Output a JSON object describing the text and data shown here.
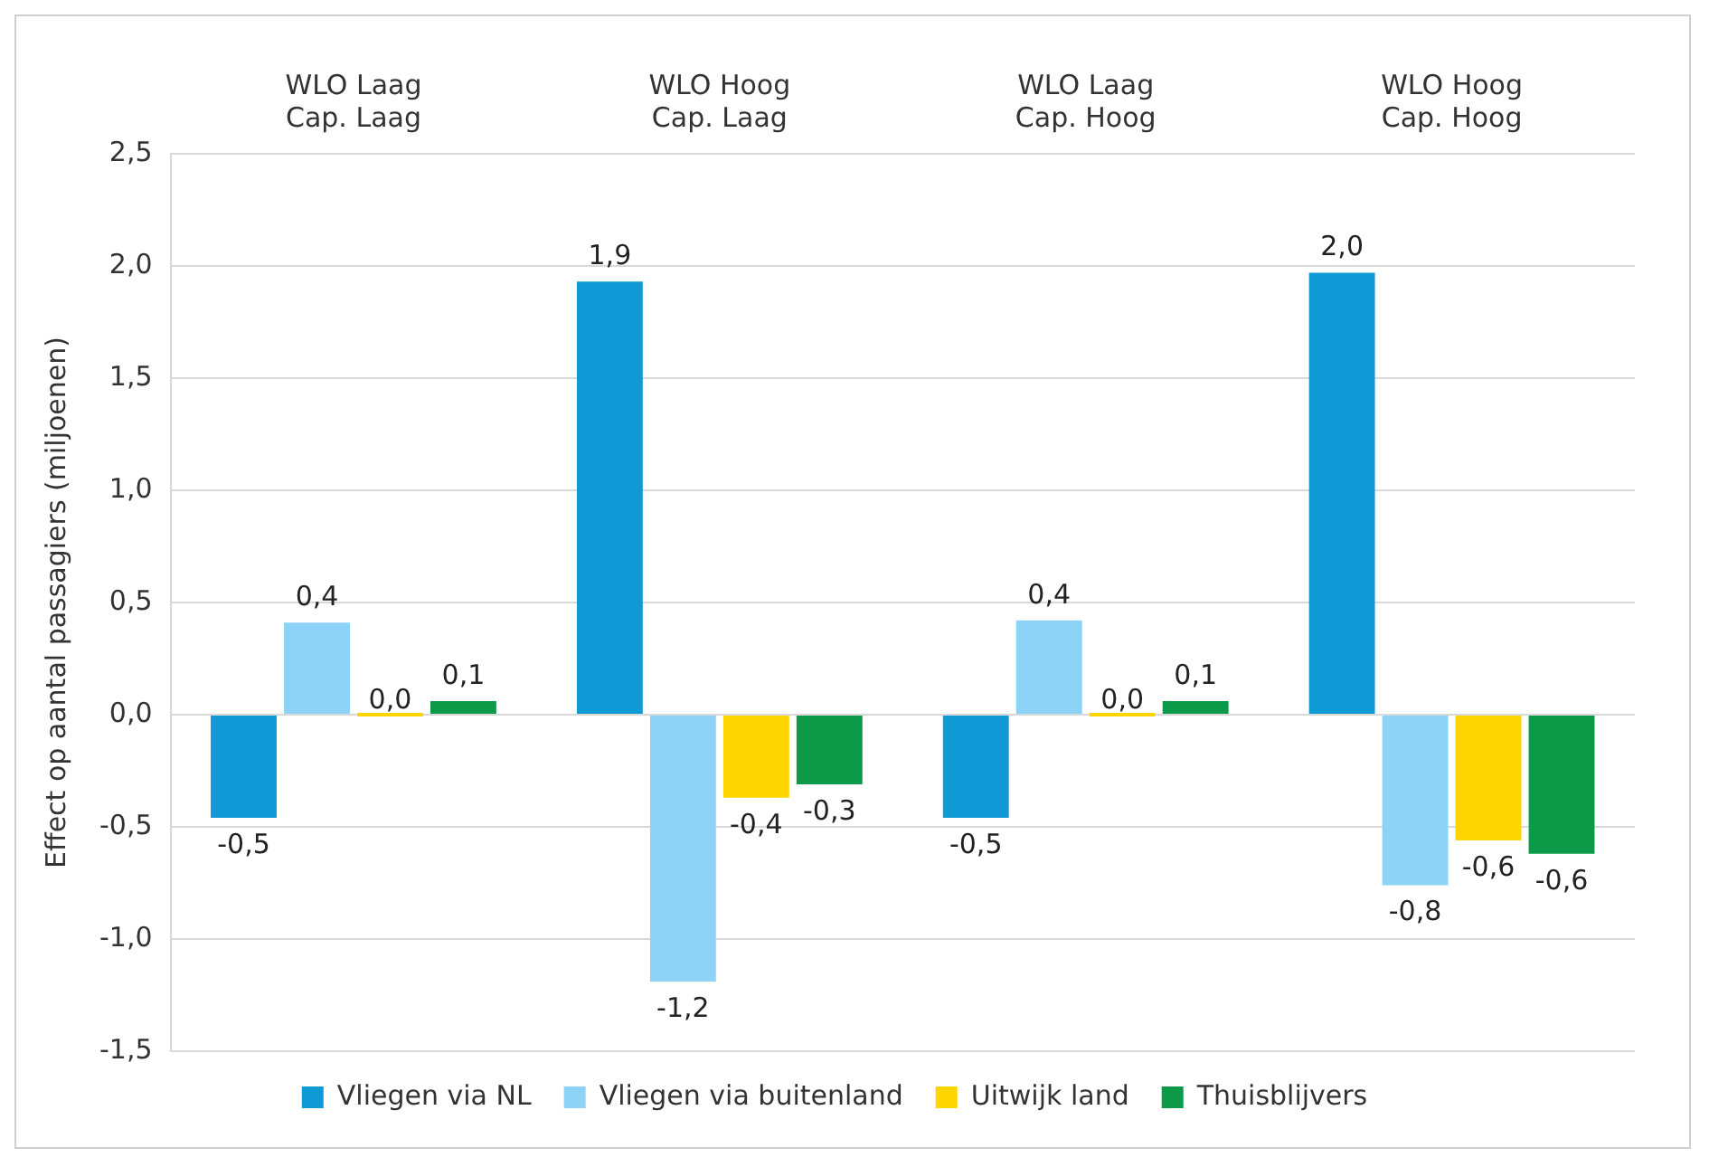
{
  "chart_data": {
    "type": "bar",
    "ylabel": "Effect op aantal passagiers (miljoenen)",
    "categories": [
      "WLO Laag\nCap. Laag",
      "WLO Hoog\nCap. Laag",
      "WLO Laag\nCap. Hoog",
      "WLO Hoog\nCap. Hoog"
    ],
    "series": [
      {
        "name": "Vliegen via NL",
        "color": "#0f9ad6",
        "values": [
          -0.46,
          1.93,
          -0.46,
          1.97
        ],
        "value_labels": [
          "-0,5",
          "1,9",
          "-0,5",
          "2,0"
        ]
      },
      {
        "name": "Vliegen via buitenland",
        "color": "#8dd3f8",
        "values": [
          0.41,
          -1.19,
          0.42,
          -0.76
        ],
        "value_labels": [
          "0,4",
          "-1,2",
          "0,4",
          "-0,8"
        ]
      },
      {
        "name": "Uitwijk land",
        "color": "#ffd500",
        "values": [
          0.0,
          -0.37,
          0.0,
          -0.56
        ],
        "value_labels": [
          "0,0",
          "-0,4",
          "0,0",
          "-0,6"
        ]
      },
      {
        "name": "Thuisblijvers",
        "color": "#0d9a48",
        "values": [
          0.06,
          -0.31,
          0.06,
          -0.62
        ],
        "value_labels": [
          "0,1",
          "-0,3",
          "0,1",
          "-0,6"
        ]
      }
    ],
    "ylim": [
      -1.5,
      2.5
    ],
    "yticks": [
      {
        "value": -1.5,
        "label": "-1,5"
      },
      {
        "value": -1.0,
        "label": "-1,0"
      },
      {
        "value": -0.5,
        "label": "-0,5"
      },
      {
        "value": 0,
        "label": "0,0"
      },
      {
        "value": 0.5,
        "label": "0,5"
      },
      {
        "value": 1.0,
        "label": "1,0"
      },
      {
        "value": 1.5,
        "label": "1,5"
      },
      {
        "value": 2.0,
        "label": "2,0"
      },
      {
        "value": 2.5,
        "label": "2,5"
      }
    ],
    "grid": "y",
    "legend": "bottom"
  }
}
